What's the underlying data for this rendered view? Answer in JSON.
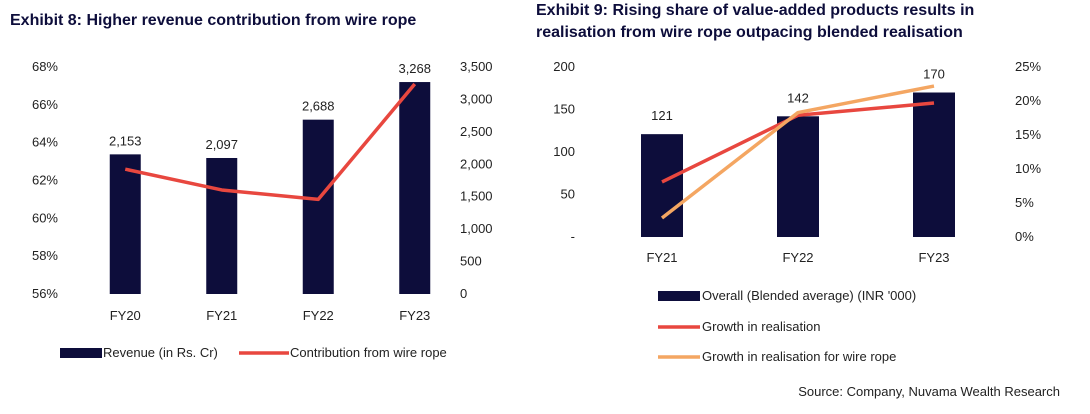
{
  "exhibit8": {
    "title": "Exhibit 8: Higher revenue contribution from wire rope"
  },
  "exhibit9": {
    "title": "Exhibit 9: Rising share of value-added products results in realisation from wire rope outpacing blended realisation"
  },
  "source": "Source: Company, Nuvama Wealth Research",
  "colors": {
    "bar": "#0d0d3b",
    "red": "#e8473f",
    "orange": "#f4a662"
  },
  "chart_data": [
    {
      "type": "bar",
      "title": "Exhibit 8: Higher revenue contribution from wire rope",
      "categories": [
        "FY20",
        "FY21",
        "FY22",
        "FY23"
      ],
      "series": [
        {
          "name": "Revenue (in Rs. Cr)",
          "type": "bar",
          "axis": "right",
          "values": [
            2153,
            2097,
            2688,
            3268
          ],
          "labels": [
            "2,153",
            "2,097",
            "2,688",
            "3,268"
          ]
        },
        {
          "name": "Contribution from wire rope",
          "type": "line",
          "axis": "left",
          "values": [
            62.6,
            61.5,
            61.0,
            67.1
          ]
        }
      ],
      "left_axis": {
        "ylim": [
          56,
          68
        ],
        "ticks": [
          "56%",
          "58%",
          "60%",
          "62%",
          "64%",
          "66%",
          "68%"
        ]
      },
      "right_axis": {
        "ylim": [
          0,
          3500
        ],
        "ticks": [
          "0",
          "500",
          "1,000",
          "1,500",
          "2,000",
          "2,500",
          "3,000",
          "3,500"
        ]
      },
      "legend_position": "bottom"
    },
    {
      "type": "bar",
      "title": "Exhibit 9: Rising share of value-added products results in realisation from wire rope outpacing blended realisation",
      "categories": [
        "FY21",
        "FY22",
        "FY23"
      ],
      "series": [
        {
          "name": "Overall (Blended average) (INR '000)",
          "type": "bar",
          "axis": "left",
          "values": [
            121,
            142,
            170
          ],
          "labels": [
            "121",
            "142",
            "170"
          ]
        },
        {
          "name": "Growth in realisation",
          "type": "line",
          "axis": "right",
          "values": [
            8.1,
            17.9,
            19.7
          ]
        },
        {
          "name": "Growth in realisation for wire rope",
          "type": "line",
          "axis": "right",
          "values": [
            2.8,
            18.3,
            22.2
          ]
        }
      ],
      "left_axis": {
        "ylim": [
          0,
          200
        ],
        "ticks": [
          "-",
          "50",
          "100",
          "150",
          "200"
        ]
      },
      "right_axis": {
        "ylim": [
          0,
          25
        ],
        "ticks": [
          "0%",
          "5%",
          "10%",
          "15%",
          "20%",
          "25%"
        ]
      },
      "legend_position": "bottom"
    }
  ]
}
